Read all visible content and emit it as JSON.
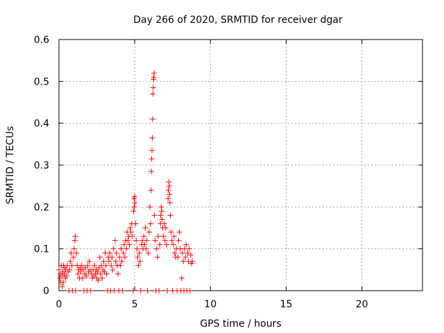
{
  "chart_data": {
    "type": "scatter",
    "title": "Day 266 of 2020, SRMTID for receiver dgar",
    "xlabel": "GPS time / hours",
    "ylabel": "SRMTID / TECUs",
    "xlim": [
      0,
      24
    ],
    "ylim": [
      0,
      0.6
    ],
    "xticks": [
      0,
      5,
      10,
      15,
      20
    ],
    "yticks": [
      0,
      0.1,
      0.2,
      0.3,
      0.4,
      0.5,
      0.6
    ],
    "xtick_labels": [
      "0",
      "5",
      "10",
      "15",
      "20"
    ],
    "ytick_labels": [
      "0",
      "0.1",
      "0.2",
      "0.3",
      "0.4",
      "0.5",
      "0.6"
    ],
    "grid": true,
    "marker": "+",
    "color": "#ff0000",
    "series": [
      {
        "name": "SRMTID",
        "points": [
          [
            0.0,
            0.05
          ],
          [
            0.05,
            0.03
          ],
          [
            0.1,
            0.04
          ],
          [
            0.12,
            0.02
          ],
          [
            0.15,
            0.06
          ],
          [
            0.2,
            0.035
          ],
          [
            0.22,
            0.01
          ],
          [
            0.25,
            0.045
          ],
          [
            0.28,
            0.02
          ],
          [
            0.3,
            0.06
          ],
          [
            0.35,
            0.04
          ],
          [
            0.38,
            0.055
          ],
          [
            0.42,
            0.03
          ],
          [
            0.45,
            0.05
          ],
          [
            0.5,
            0.035
          ],
          [
            0.55,
            0.06
          ],
          [
            0.6,
            0.045
          ],
          [
            0.65,
            0.0
          ],
          [
            0.7,
            0.05
          ],
          [
            0.75,
            0.07
          ],
          [
            0.8,
            0.09
          ],
          [
            0.85,
            0.06
          ],
          [
            0.9,
            0.0
          ],
          [
            0.95,
            0.08
          ],
          [
            1.0,
            0.1
          ],
          [
            1.05,
            0.12
          ],
          [
            1.08,
            0.13
          ],
          [
            1.1,
            0.0
          ],
          [
            1.15,
            0.09
          ],
          [
            1.2,
            0.06
          ],
          [
            1.25,
            0.04
          ],
          [
            1.3,
            0.05
          ],
          [
            1.35,
            0.03
          ],
          [
            1.4,
            0.055
          ],
          [
            1.45,
            0.045
          ],
          [
            1.5,
            0.06
          ],
          [
            1.55,
            0.03
          ],
          [
            1.6,
            0.05
          ],
          [
            1.65,
            0.0
          ],
          [
            1.7,
            0.04
          ],
          [
            1.75,
            0.055
          ],
          [
            1.8,
            0.035
          ],
          [
            1.85,
            0.0
          ],
          [
            1.9,
            0.06
          ],
          [
            1.95,
            0.045
          ],
          [
            2.0,
            0.07
          ],
          [
            2.05,
            0.05
          ],
          [
            2.1,
            0.0
          ],
          [
            2.15,
            0.04
          ],
          [
            2.2,
            0.03
          ],
          [
            2.25,
            0.05
          ],
          [
            2.3,
            0.035
          ],
          [
            2.35,
            0.06
          ],
          [
            2.4,
            0.04
          ],
          [
            2.45,
            0.05
          ],
          [
            2.5,
            0.03
          ],
          [
            2.55,
            0.045
          ],
          [
            2.6,
            0.025
          ],
          [
            2.65,
            0.055
          ],
          [
            2.7,
            0.08
          ],
          [
            2.75,
            0.04
          ],
          [
            2.8,
            0.06
          ],
          [
            2.85,
            0.03
          ],
          [
            2.9,
            0.05
          ],
          [
            2.95,
            0.07
          ],
          [
            3.0,
            0.045
          ],
          [
            3.05,
            0.09
          ],
          [
            3.1,
            0.06
          ],
          [
            3.15,
            0.04
          ],
          [
            3.2,
            0.0
          ],
          [
            3.25,
            0.08
          ],
          [
            3.3,
            0.07
          ],
          [
            3.35,
            0.09
          ],
          [
            3.4,
            0.0
          ],
          [
            3.45,
            0.06
          ],
          [
            3.5,
            0.08
          ],
          [
            3.55,
            0.05
          ],
          [
            3.6,
            0.1
          ],
          [
            3.65,
            0.0
          ],
          [
            3.7,
            0.12
          ],
          [
            3.75,
            0.07
          ],
          [
            3.8,
            0.09
          ],
          [
            3.85,
            0.06
          ],
          [
            3.9,
            0.04
          ],
          [
            3.95,
            0.0
          ],
          [
            4.0,
            0.08
          ],
          [
            4.05,
            0.06
          ],
          [
            4.1,
            0.1
          ],
          [
            4.15,
            0.07
          ],
          [
            4.2,
            0.0
          ],
          [
            4.25,
            0.09
          ],
          [
            4.3,
            0.11
          ],
          [
            4.35,
            0.08
          ],
          [
            4.4,
            0.12
          ],
          [
            4.45,
            0.1
          ],
          [
            4.5,
            0.14
          ],
          [
            4.55,
            0.12
          ],
          [
            4.6,
            0.13
          ],
          [
            4.65,
            0.11
          ],
          [
            4.7,
            0.15
          ],
          [
            4.75,
            0.14
          ],
          [
            4.8,
            0.16
          ],
          [
            4.85,
            0.13
          ],
          [
            4.9,
            0.0
          ],
          [
            4.92,
            0.19
          ],
          [
            4.95,
            0.22
          ],
          [
            4.97,
            0.2
          ],
          [
            5.0,
            0.225
          ],
          [
            5.02,
            0.21
          ],
          [
            5.05,
            0.16
          ],
          [
            5.1,
            0.12
          ],
          [
            5.15,
            0.1
          ],
          [
            5.2,
            0.08
          ],
          [
            5.25,
            0.06
          ],
          [
            5.3,
            0.09
          ],
          [
            5.35,
            0.07
          ],
          [
            5.4,
            0.0
          ],
          [
            5.45,
            0.11
          ],
          [
            5.5,
            0.12
          ],
          [
            5.55,
            0.1
          ],
          [
            5.6,
            0.13
          ],
          [
            5.65,
            0.11
          ],
          [
            5.7,
            0.15
          ],
          [
            5.75,
            0.1
          ],
          [
            5.8,
            0.12
          ],
          [
            5.85,
            0.0
          ],
          [
            5.9,
            0.09
          ],
          [
            5.95,
            0.14
          ],
          [
            6.0,
            0.2
          ],
          [
            6.05,
            0.16
          ],
          [
            6.08,
            0.24
          ],
          [
            6.1,
            0.285
          ],
          [
            6.12,
            0.315
          ],
          [
            6.14,
            0.335
          ],
          [
            6.16,
            0.365
          ],
          [
            6.18,
            0.41
          ],
          [
            6.2,
            0.47
          ],
          [
            6.22,
            0.485
          ],
          [
            6.24,
            0.505
          ],
          [
            6.26,
            0.51
          ],
          [
            6.28,
            0.52
          ],
          [
            6.3,
            0.18
          ],
          [
            6.35,
            0.12
          ],
          [
            6.4,
            0.0
          ],
          [
            6.45,
            0.1
          ],
          [
            6.5,
            0.08
          ],
          [
            6.55,
            0.13
          ],
          [
            6.6,
            0.0
          ],
          [
            6.65,
            0.11
          ],
          [
            6.7,
            0.16
          ],
          [
            6.72,
            0.18
          ],
          [
            6.75,
            0.2
          ],
          [
            6.78,
            0.19
          ],
          [
            6.8,
            0.17
          ],
          [
            6.85,
            0.15
          ],
          [
            6.9,
            0.13
          ],
          [
            6.95,
            0.16
          ],
          [
            7.0,
            0.12
          ],
          [
            7.05,
            0.15
          ],
          [
            7.1,
            0.11
          ],
          [
            7.15,
            0.0
          ],
          [
            7.2,
            0.22
          ],
          [
            7.22,
            0.24
          ],
          [
            7.25,
            0.26
          ],
          [
            7.28,
            0.25
          ],
          [
            7.3,
            0.23
          ],
          [
            7.32,
            0.21
          ],
          [
            7.35,
            0.18
          ],
          [
            7.4,
            0.14
          ],
          [
            7.45,
            0.12
          ],
          [
            7.5,
            0.0
          ],
          [
            7.55,
            0.11
          ],
          [
            7.6,
            0.13
          ],
          [
            7.65,
            0.09
          ],
          [
            7.7,
            0.08
          ],
          [
            7.75,
            0.1
          ],
          [
            7.8,
            0.0
          ],
          [
            7.85,
            0.08
          ],
          [
            7.9,
            0.12
          ],
          [
            7.95,
            0.14
          ],
          [
            8.0,
            0.1
          ],
          [
            8.05,
            0.0
          ],
          [
            8.1,
            0.03
          ],
          [
            8.15,
            0.09
          ],
          [
            8.2,
            0.07
          ],
          [
            8.25,
            0.0
          ],
          [
            8.3,
            0.1
          ],
          [
            8.35,
            0.08
          ],
          [
            8.4,
            0.11
          ],
          [
            8.45,
            0.0
          ],
          [
            8.5,
            0.09
          ],
          [
            8.55,
            0.07
          ],
          [
            8.6,
            0.1
          ],
          [
            8.65,
            0.0
          ],
          [
            8.7,
            0.085
          ],
          [
            8.75,
            0.065
          ],
          [
            8.8,
            0.07
          ]
        ]
      }
    ]
  }
}
